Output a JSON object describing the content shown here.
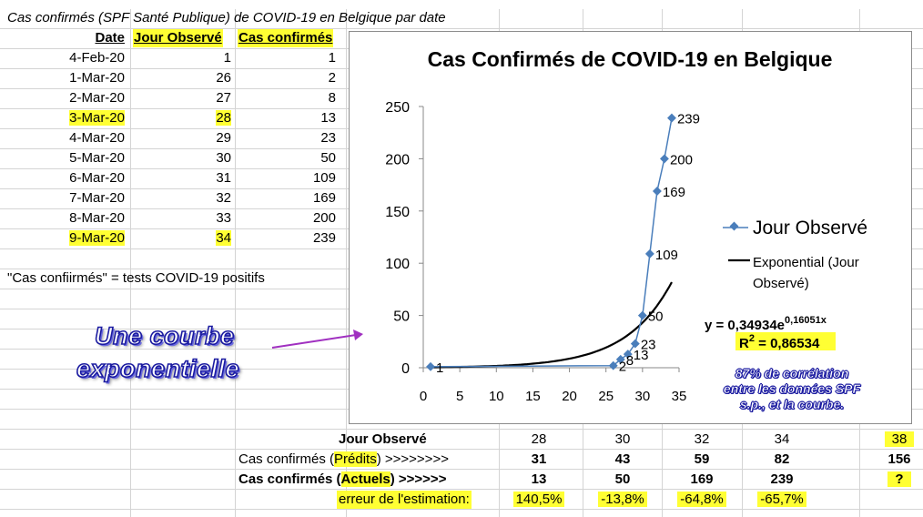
{
  "sheet": {
    "title": "Cas confirmés (SPF Santé Publique) de COVID-19 en Belgique par date",
    "headers": {
      "date": "Date",
      "jour": "Jour Observé",
      "cas": "Cas confirmés"
    },
    "rows": [
      {
        "date": "4-Feb-20",
        "jour": "1",
        "cas": "1",
        "highlight": false
      },
      {
        "date": "1-Mar-20",
        "jour": "26",
        "cas": "2",
        "highlight": false
      },
      {
        "date": "2-Mar-20",
        "jour": "27",
        "cas": "8",
        "highlight": false
      },
      {
        "date": "3-Mar-20",
        "jour": "28",
        "cas": "13",
        "highlight": true
      },
      {
        "date": "4-Mar-20",
        "jour": "29",
        "cas": "23",
        "highlight": false
      },
      {
        "date": "5-Mar-20",
        "jour": "30",
        "cas": "50",
        "highlight": false
      },
      {
        "date": "6-Mar-20",
        "jour": "31",
        "cas": "109",
        "highlight": false
      },
      {
        "date": "7-Mar-20",
        "jour": "32",
        "cas": "169",
        "highlight": false
      },
      {
        "date": "8-Mar-20",
        "jour": "33",
        "cas": "200",
        "highlight": false
      },
      {
        "date": "9-Mar-20",
        "jour": "34",
        "cas": "239",
        "highlight": true
      }
    ],
    "note": "\"Cas confiirmés\" = tests COVID-19 positifs"
  },
  "wordart": {
    "line1": "Une courbe",
    "line2": "exponentielle"
  },
  "correlation": {
    "line1": "87% de corrélation",
    "line2": "entre les données SPF",
    "line3": "s.p., et la courbe."
  },
  "prediction_table": {
    "jour_label": "Jour Observé",
    "jours": [
      "28",
      "30",
      "32",
      "34",
      "38"
    ],
    "predits_label_pre": "Cas confirmés (",
    "predits_label_hl": "Prédits",
    "predits_label_post": ") >>>>>>>>",
    "predits": [
      "31",
      "43",
      "59",
      "82",
      "156"
    ],
    "actuels_label_pre": "Cas confirmés (",
    "actuels_label_hl": "Actuels",
    "actuels_label_post": ") >>>>>>",
    "actuels": [
      "13",
      "50",
      "169",
      "239",
      "?"
    ],
    "erreur_label": "erreur de l'estimation:",
    "erreurs": [
      "140,5%",
      "-13,8%",
      "-64,8%",
      "-65,7%"
    ]
  },
  "colors": {
    "highlight": "#ffff33",
    "series": "#4a7ebb",
    "trend": "#000000",
    "wordart": "#1a1aa0",
    "arrow": "#a030c0"
  },
  "chart_data": {
    "type": "line",
    "title": "Cas Confirmés de COVID-19 en Belgique",
    "xlim": [
      0,
      35
    ],
    "ylim": [
      0,
      250
    ],
    "xticks": [
      0,
      5,
      10,
      15,
      20,
      25,
      30,
      35
    ],
    "yticks": [
      0,
      50,
      100,
      150,
      200,
      250
    ],
    "grid": false,
    "legend_position": "right",
    "series": [
      {
        "name": "Jour Observé",
        "x": [
          1,
          26,
          27,
          28,
          29,
          30,
          31,
          32,
          33,
          34
        ],
        "y": [
          1,
          2,
          8,
          13,
          23,
          50,
          109,
          169,
          200,
          239
        ],
        "labels": [
          "1",
          "2",
          "8",
          "13",
          "23",
          "50",
          "109",
          "169",
          "200",
          "239"
        ]
      }
    ],
    "trendline": {
      "name": "Exponential (Jour Observé)",
      "a": 0.34934,
      "b": 0.16051,
      "x_range": [
        1,
        34
      ]
    },
    "equation": "y = 0,34934e",
    "equation_exp": "0,16051x",
    "r2_label": "R",
    "r2_exp": "2",
    "r2_value": " = 0,86534"
  }
}
